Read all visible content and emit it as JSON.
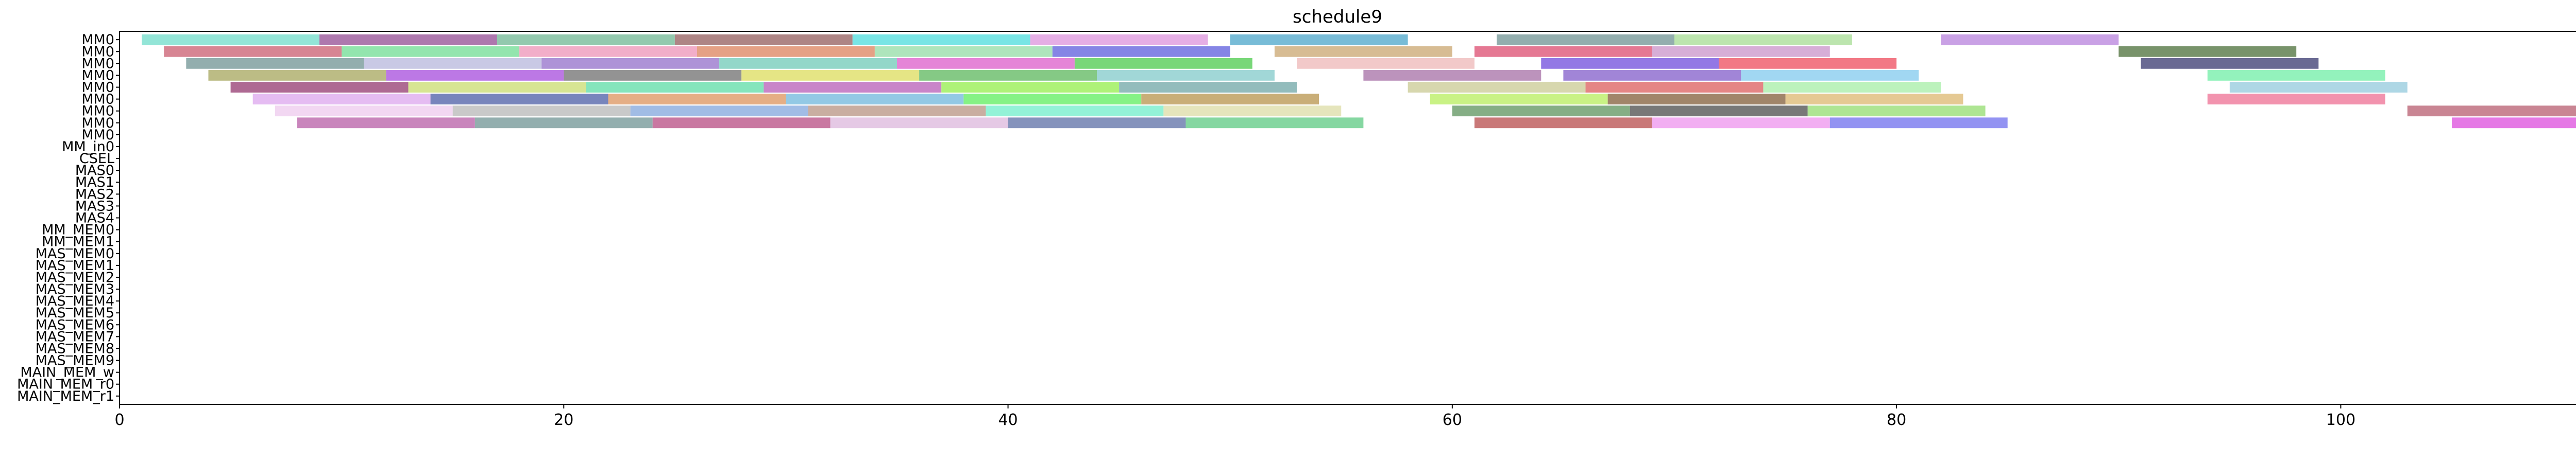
{
  "chart_data": {
    "type": "gantt",
    "title": "schedule9",
    "xlabel": "",
    "ylabel": "",
    "xlim": [
      0,
      114
    ],
    "xticks": [
      0,
      20,
      40,
      60,
      80,
      100
    ],
    "grid": false,
    "legend": "none",
    "rows": [
      "MM0",
      "MM0",
      "MM0",
      "MM0",
      "MM0",
      "MM0",
      "MM0",
      "MM0",
      "MM0",
      "MM_in0",
      "CSEL",
      "MAS0",
      "MAS1",
      "MAS2",
      "MAS3",
      "MAS4",
      "MM_MEM0",
      "MM_MEM1",
      "MAS_MEM0",
      "MAS_MEM1",
      "MAS_MEM2",
      "MAS_MEM3",
      "MAS_MEM4",
      "MAS_MEM5",
      "MAS_MEM6",
      "MAS_MEM7",
      "MAS_MEM8",
      "MAS_MEM9",
      "MAIN_MEM_w",
      "MAIN_MEM_r0",
      "MAIN_MEM_r1"
    ],
    "tasks": [
      {
        "row": 0,
        "start": 1,
        "end": 9,
        "color": "#80e0d0"
      },
      {
        "row": 0,
        "start": 9,
        "end": 17,
        "color": "#a060a0"
      },
      {
        "row": 0,
        "start": 17,
        "end": 25,
        "color": "#80c0a0"
      },
      {
        "row": 0,
        "start": 25,
        "end": 33,
        "color": "#a07070"
      },
      {
        "row": 0,
        "start": 33,
        "end": 41,
        "color": "#60e0e0"
      },
      {
        "row": 0,
        "start": 41,
        "end": 49,
        "color": "#e0a0e0"
      },
      {
        "row": 0,
        "start": 50,
        "end": 58,
        "color": "#60b0d0"
      },
      {
        "row": 0,
        "start": 62,
        "end": 70,
        "color": "#80a0a0"
      },
      {
        "row": 0,
        "start": 70,
        "end": 78,
        "color": "#b0e0a0"
      },
      {
        "row": 0,
        "start": 82,
        "end": 90,
        "color": "#c090e0"
      },
      {
        "row": 1,
        "start": 2,
        "end": 10,
        "color": "#d07080"
      },
      {
        "row": 1,
        "start": 10,
        "end": 18,
        "color": "#80e0a0"
      },
      {
        "row": 1,
        "start": 18,
        "end": 26,
        "color": "#f0a0c0"
      },
      {
        "row": 1,
        "start": 26,
        "end": 34,
        "color": "#e09070"
      },
      {
        "row": 1,
        "start": 34,
        "end": 42,
        "color": "#a0e0b0"
      },
      {
        "row": 1,
        "start": 42,
        "end": 50,
        "color": "#7070e0"
      },
      {
        "row": 1,
        "start": 52,
        "end": 60,
        "color": "#d0b080"
      },
      {
        "row": 1,
        "start": 61,
        "end": 69,
        "color": "#e06080"
      },
      {
        "row": 1,
        "start": 69,
        "end": 77,
        "color": "#d0a0d0"
      },
      {
        "row": 1,
        "start": 90,
        "end": 98,
        "color": "#608050"
      },
      {
        "row": 2,
        "start": 3,
        "end": 11,
        "color": "#80a0a0"
      },
      {
        "row": 2,
        "start": 11,
        "end": 19,
        "color": "#c0c0e0"
      },
      {
        "row": 2,
        "start": 19,
        "end": 27,
        "color": "#a080d0"
      },
      {
        "row": 2,
        "start": 27,
        "end": 35,
        "color": "#80d0c0"
      },
      {
        "row": 2,
        "start": 35,
        "end": 43,
        "color": "#e070d0"
      },
      {
        "row": 2,
        "start": 43,
        "end": 51,
        "color": "#60d060"
      },
      {
        "row": 2,
        "start": 53,
        "end": 61,
        "color": "#f0c0c0"
      },
      {
        "row": 2,
        "start": 64,
        "end": 72,
        "color": "#8060e0"
      },
      {
        "row": 2,
        "start": 72,
        "end": 80,
        "color": "#f06070"
      },
      {
        "row": 2,
        "start": 91,
        "end": 99,
        "color": "#505080"
      },
      {
        "row": 3,
        "start": 4,
        "end": 12,
        "color": "#b0b070"
      },
      {
        "row": 3,
        "start": 12,
        "end": 20,
        "color": "#b060e0"
      },
      {
        "row": 3,
        "start": 20,
        "end": 28,
        "color": "#808080"
      },
      {
        "row": 3,
        "start": 28,
        "end": 36,
        "color": "#e0e070"
      },
      {
        "row": 3,
        "start": 36,
        "end": 44,
        "color": "#70c070"
      },
      {
        "row": 3,
        "start": 44,
        "end": 52,
        "color": "#90d0d0"
      },
      {
        "row": 3,
        "start": 56,
        "end": 64,
        "color": "#b080b0"
      },
      {
        "row": 3,
        "start": 65,
        "end": 73,
        "color": "#9070d0"
      },
      {
        "row": 3,
        "start": 73,
        "end": 81,
        "color": "#90d0f0"
      },
      {
        "row": 3,
        "start": 94,
        "end": 102,
        "color": "#80f0b0"
      },
      {
        "row": 4,
        "start": 5,
        "end": 13,
        "color": "#a05080"
      },
      {
        "row": 4,
        "start": 13,
        "end": 21,
        "color": "#d0e080"
      },
      {
        "row": 4,
        "start": 21,
        "end": 29,
        "color": "#70e0b0"
      },
      {
        "row": 4,
        "start": 29,
        "end": 37,
        "color": "#c070c0"
      },
      {
        "row": 4,
        "start": 37,
        "end": 45,
        "color": "#a0f060"
      },
      {
        "row": 4,
        "start": 45,
        "end": 53,
        "color": "#80b0b0"
      },
      {
        "row": 4,
        "start": 58,
        "end": 66,
        "color": "#d0d0a0"
      },
      {
        "row": 4,
        "start": 66,
        "end": 74,
        "color": "#e07070"
      },
      {
        "row": 4,
        "start": 74,
        "end": 82,
        "color": "#b0f0b0"
      },
      {
        "row": 4,
        "start": 95,
        "end": 103,
        "color": "#a0d0e0"
      },
      {
        "row": 5,
        "start": 6,
        "end": 14,
        "color": "#e0b0f0"
      },
      {
        "row": 5,
        "start": 14,
        "end": 22,
        "color": "#6070b0"
      },
      {
        "row": 5,
        "start": 22,
        "end": 30,
        "color": "#e0a070"
      },
      {
        "row": 5,
        "start": 30,
        "end": 38,
        "color": "#80c0e0"
      },
      {
        "row": 5,
        "start": 38,
        "end": 46,
        "color": "#70f070"
      },
      {
        "row": 5,
        "start": 46,
        "end": 54,
        "color": "#c0a060"
      },
      {
        "row": 5,
        "start": 59,
        "end": 67,
        "color": "#c0f070"
      },
      {
        "row": 5,
        "start": 67,
        "end": 75,
        "color": "#907050"
      },
      {
        "row": 5,
        "start": 75,
        "end": 83,
        "color": "#e0c080"
      },
      {
        "row": 5,
        "start": 94,
        "end": 102,
        "color": "#f080a0"
      },
      {
        "row": 6,
        "start": 7,
        "end": 15,
        "color": "#f0d0f0"
      },
      {
        "row": 6,
        "start": 15,
        "end": 23,
        "color": "#c0c0c0"
      },
      {
        "row": 6,
        "start": 23,
        "end": 31,
        "color": "#90b0e0"
      },
      {
        "row": 6,
        "start": 31,
        "end": 39,
        "color": "#c0a090"
      },
      {
        "row": 6,
        "start": 39,
        "end": 47,
        "color": "#80f0d0"
      },
      {
        "row": 6,
        "start": 47,
        "end": 55,
        "color": "#e0e0b0"
      },
      {
        "row": 6,
        "start": 60,
        "end": 68,
        "color": "#70a070"
      },
      {
        "row": 6,
        "start": 68,
        "end": 76,
        "color": "#606060"
      },
      {
        "row": 6,
        "start": 76,
        "end": 84,
        "color": "#a0e080"
      },
      {
        "row": 6,
        "start": 103,
        "end": 111,
        "color": "#c07080"
      },
      {
        "row": 7,
        "start": 8,
        "end": 16,
        "color": "#c070b0"
      },
      {
        "row": 7,
        "start": 16,
        "end": 24,
        "color": "#80a0a0"
      },
      {
        "row": 7,
        "start": 24,
        "end": 32,
        "color": "#c06090"
      },
      {
        "row": 7,
        "start": 32,
        "end": 40,
        "color": "#e0c0e0"
      },
      {
        "row": 7,
        "start": 40,
        "end": 48,
        "color": "#7080b0"
      },
      {
        "row": 7,
        "start": 48,
        "end": 56,
        "color": "#70d090"
      },
      {
        "row": 7,
        "start": 61,
        "end": 69,
        "color": "#c06060"
      },
      {
        "row": 7,
        "start": 69,
        "end": 77,
        "color": "#f0a0f0"
      },
      {
        "row": 7,
        "start": 77,
        "end": 85,
        "color": "#8080f0"
      },
      {
        "row": 7,
        "start": 105,
        "end": 113,
        "color": "#e060e0"
      }
    ]
  }
}
